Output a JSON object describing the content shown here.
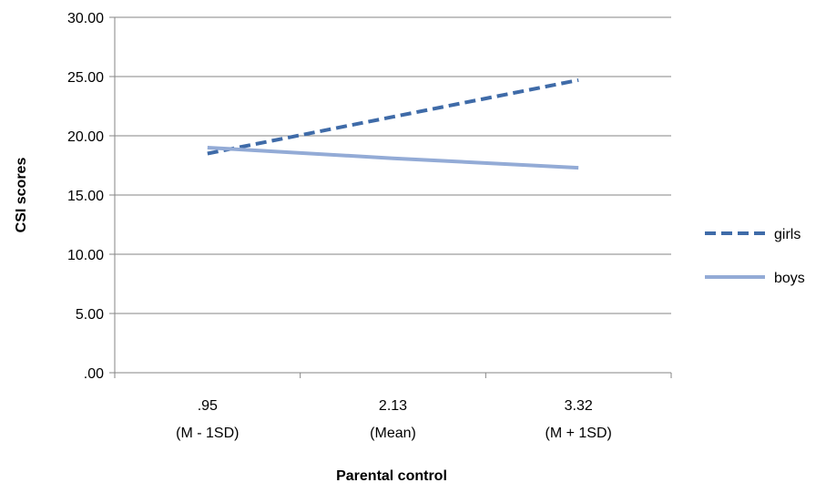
{
  "chart_data": {
    "type": "line",
    "title": "",
    "xlabel": "Parental control",
    "ylabel": "CSI scores",
    "categories": [
      {
        "value": ".95",
        "sub": "(M - 1SD)"
      },
      {
        "value": "2.13",
        "sub": "(Mean)"
      },
      {
        "value": "3.32",
        "sub": "(M + 1SD)"
      }
    ],
    "yticks": [
      ".00",
      "5.00",
      "10.00",
      "15.00",
      "20.00",
      "25.00",
      "30.00"
    ],
    "ylim": [
      0,
      30
    ],
    "y_gridlines": true,
    "legend_position": "right",
    "series": [
      {
        "name": "girls",
        "values": [
          18.5,
          21.6,
          24.7
        ],
        "color": "#3f6ba8",
        "style": "dashed"
      },
      {
        "name": "boys",
        "values": [
          19.0,
          18.1,
          17.3
        ],
        "color": "#93abd6",
        "style": "solid"
      }
    ]
  }
}
